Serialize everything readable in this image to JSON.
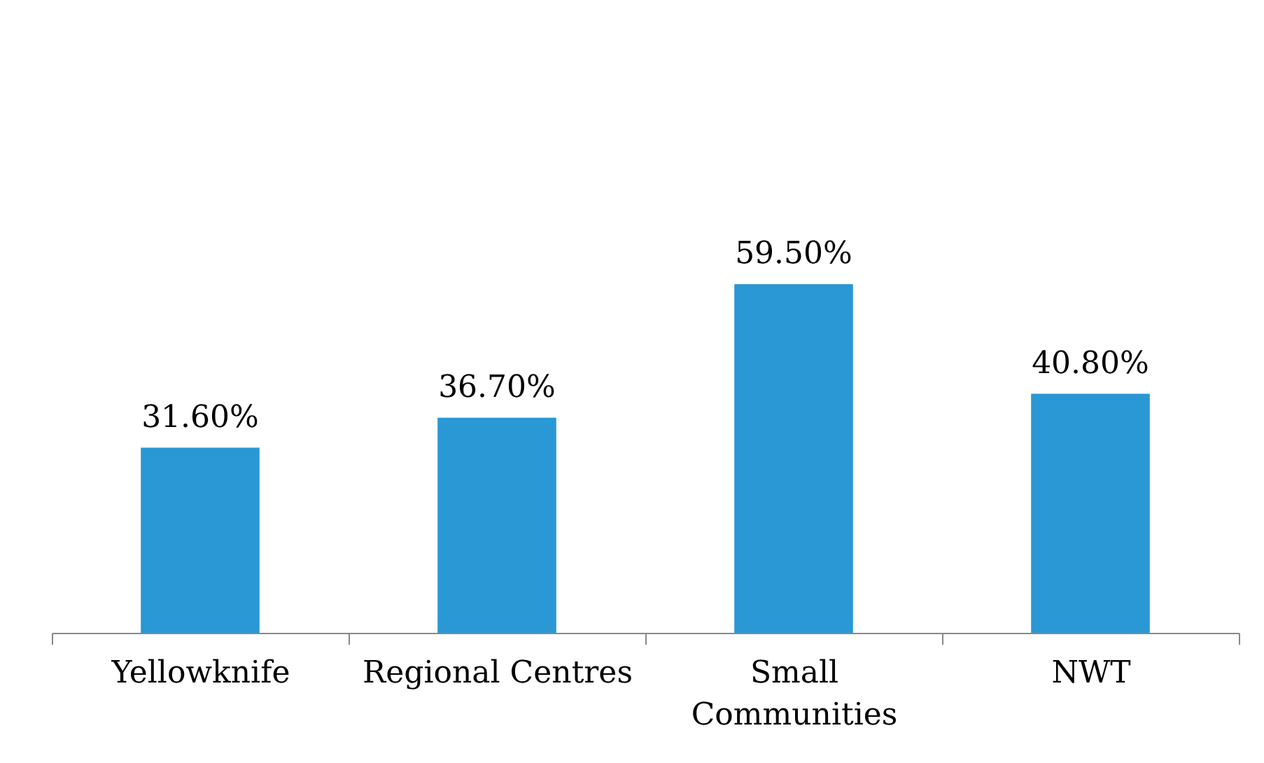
{
  "chart_data": {
    "type": "bar",
    "categories": [
      "Yellowknife",
      "Regional Centres",
      "Small Communities",
      "NWT"
    ],
    "values": [
      31.6,
      36.7,
      59.5,
      40.8
    ],
    "value_labels": [
      "31.60%",
      "36.70%",
      "59.50%",
      "40.80%"
    ],
    "color": "#2a98d5",
    "tick_labels": "x"
  }
}
